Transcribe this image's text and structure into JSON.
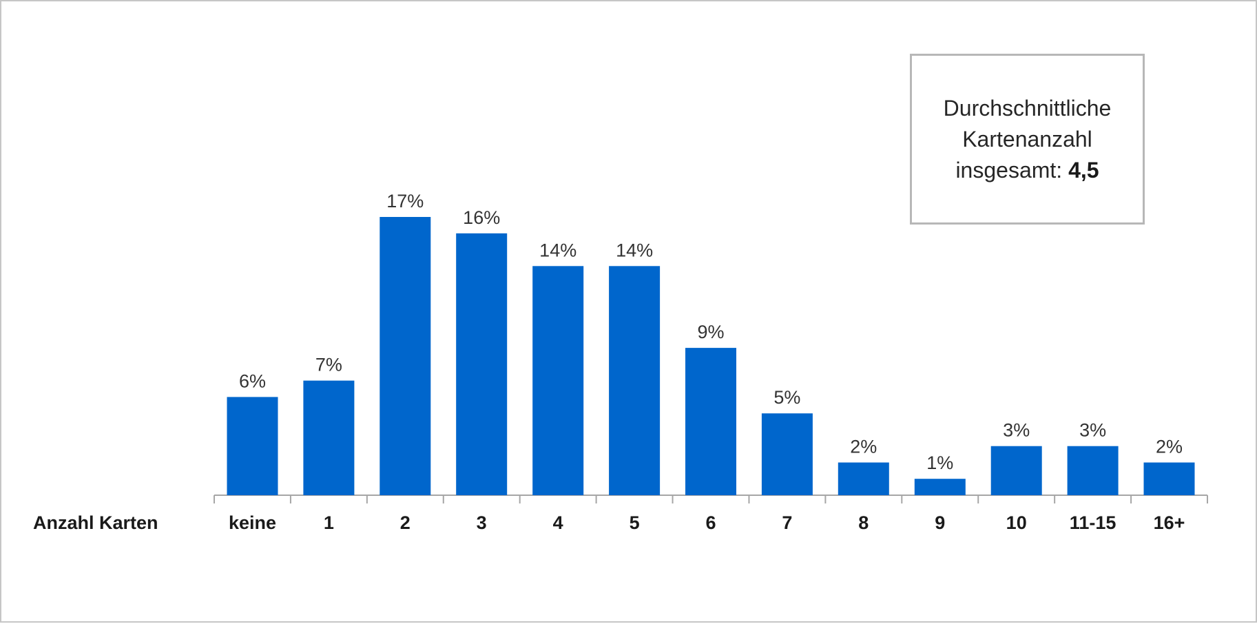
{
  "chart_data": {
    "type": "bar",
    "xlabel": "Anzahl Karten",
    "ylabel": "",
    "categories": [
      "keine",
      "1",
      "2",
      "3",
      "4",
      "5",
      "6",
      "7",
      "8",
      "9",
      "10",
      "11-15",
      "16+"
    ],
    "values": [
      6,
      7,
      17,
      16,
      14,
      14,
      9,
      5,
      2,
      1,
      3,
      3,
      2
    ],
    "value_labels": [
      "6%",
      "7%",
      "17%",
      "16%",
      "14%",
      "14%",
      "9%",
      "5%",
      "2%",
      "1%",
      "3%",
      "3%",
      "2%"
    ],
    "unit": "%",
    "ylim": [
      0,
      17
    ],
    "grid": false,
    "bar_color": "#0066CC"
  },
  "info_box": {
    "line1": "Durchschnittliche",
    "line2": "Kartenanzahl",
    "line3_prefix": "insgesamt: ",
    "line3_value": "4,5"
  }
}
